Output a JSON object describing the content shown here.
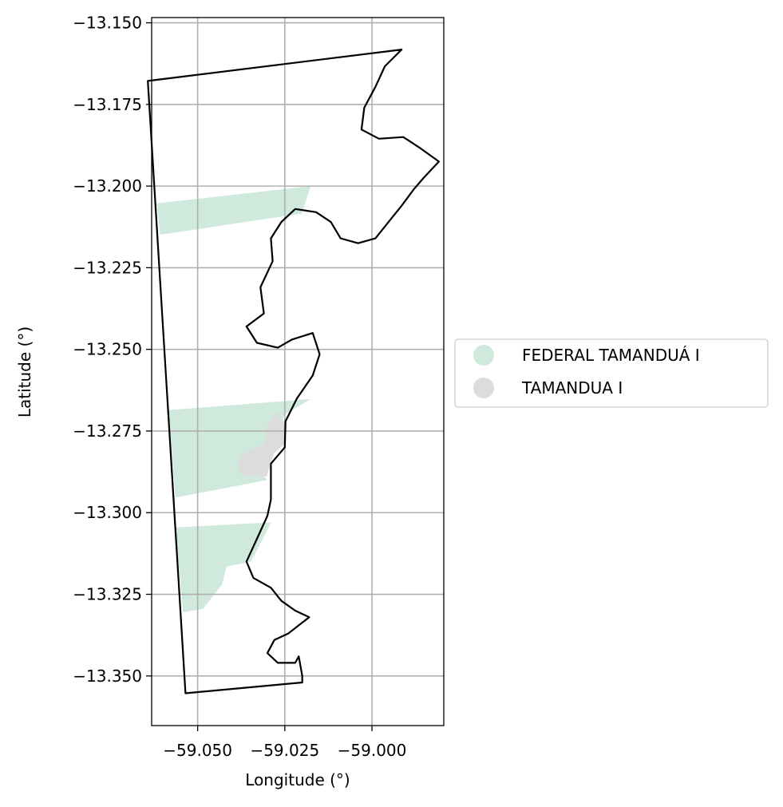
{
  "chart_data": {
    "type": "map",
    "xlabel": "Longitude (°)",
    "ylabel": "Latitude (°)",
    "xlim": [
      -59.0632,
      -58.9794
    ],
    "ylim": [
      -13.3652,
      -13.1484
    ],
    "x_ticks": [
      {
        "value": -59.05,
        "label": "−59.050"
      },
      {
        "value": -59.025,
        "label": "−59.025"
      },
      {
        "value": -59.0,
        "label": "−59.000"
      }
    ],
    "y_ticks": [
      {
        "value": -13.15,
        "label": "−13.150"
      },
      {
        "value": -13.175,
        "label": "−13.175"
      },
      {
        "value": -13.2,
        "label": "−13.200"
      },
      {
        "value": -13.225,
        "label": "−13.225"
      },
      {
        "value": -13.25,
        "label": "−13.250"
      },
      {
        "value": -13.275,
        "label": "−13.275"
      },
      {
        "value": -13.3,
        "label": "−13.300"
      },
      {
        "value": -13.325,
        "label": "−13.325"
      },
      {
        "value": -13.35,
        "label": "−13.350"
      }
    ],
    "grid": true,
    "legend_position": "right",
    "series": [
      {
        "name": "FEDERAL TAMANDUÁ I",
        "color": "#cfe9dc",
        "polygons": [
          [
            [
              -59.0617,
              -13.2053
            ],
            [
              -59.0176,
              -13.2
            ],
            [
              -59.0201,
              -13.2084
            ],
            [
              -59.0608,
              -13.2149
            ]
          ],
          [
            [
              -59.0583,
              -13.2686
            ],
            [
              -59.0176,
              -13.2652
            ],
            [
              -59.025,
              -13.27
            ],
            [
              -59.0284,
              -13.278
            ],
            [
              -59.0343,
              -13.286
            ],
            [
              -59.0299,
              -13.29
            ],
            [
              -59.0564,
              -13.2954
            ]
          ],
          [
            [
              -59.0564,
              -13.3045
            ],
            [
              -59.0289,
              -13.303
            ],
            [
              -59.0347,
              -13.315
            ],
            [
              -59.0417,
              -13.3165
            ],
            [
              -59.043,
              -13.322
            ],
            [
              -59.0485,
              -13.3295
            ],
            [
              -59.0542,
              -13.3305
            ]
          ]
        ]
      },
      {
        "name": "TAMANDUA I",
        "color": "#dcdcdc",
        "polygons": [
          [
            [
              -59.0272,
              -13.269
            ],
            [
              -59.0248,
              -13.273
            ],
            [
              -59.0252,
              -13.279
            ],
            [
              -59.0282,
              -13.282
            ],
            [
              -59.0302,
              -13.289
            ],
            [
              -59.0368,
              -13.2886
            ],
            [
              -59.0388,
              -13.286
            ],
            [
              -59.0378,
              -13.283
            ],
            [
              -59.0352,
              -13.281
            ],
            [
              -59.031,
              -13.279
            ],
            [
              -59.0298,
              -13.273
            ]
          ]
        ]
      }
    ],
    "outline": [
      [
        -59.0643,
        -13.1678
      ],
      [
        -58.9915,
        -13.1582
      ],
      [
        -58.9963,
        -13.1633
      ],
      [
        -58.999,
        -13.1696
      ],
      [
        -59.0022,
        -13.176
      ],
      [
        -59.003,
        -13.1827
      ],
      [
        -58.998,
        -13.1855
      ],
      [
        -58.991,
        -13.185
      ],
      [
        -58.986,
        -13.1885
      ],
      [
        -58.9808,
        -13.1925
      ],
      [
        -58.9852,
        -13.1975
      ],
      [
        -58.988,
        -13.201
      ],
      [
        -58.9915,
        -13.206
      ],
      [
        -58.996,
        -13.212
      ],
      [
        -58.999,
        -13.216
      ],
      [
        -59.004,
        -13.2175
      ],
      [
        -59.009,
        -13.216
      ],
      [
        -59.0118,
        -13.211
      ],
      [
        -59.016,
        -13.208
      ],
      [
        -59.022,
        -13.207
      ],
      [
        -59.026,
        -13.211
      ],
      [
        -59.029,
        -13.216
      ],
      [
        -59.0285,
        -13.223
      ],
      [
        -59.032,
        -13.231
      ],
      [
        -59.031,
        -13.239
      ],
      [
        -59.036,
        -13.243
      ],
      [
        -59.033,
        -13.248
      ],
      [
        -59.027,
        -13.2495
      ],
      [
        -59.023,
        -13.247
      ],
      [
        -59.017,
        -13.245
      ],
      [
        -59.015,
        -13.2515
      ],
      [
        -59.017,
        -13.258
      ],
      [
        -59.0215,
        -13.265
      ],
      [
        -59.0248,
        -13.272
      ],
      [
        -59.025,
        -13.28
      ],
      [
        -59.029,
        -13.285
      ],
      [
        -59.029,
        -13.296
      ],
      [
        -59.03,
        -13.301
      ],
      [
        -59.033,
        -13.308
      ],
      [
        -59.036,
        -13.315
      ],
      [
        -59.034,
        -13.32
      ],
      [
        -59.029,
        -13.323
      ],
      [
        -59.026,
        -13.327
      ],
      [
        -59.022,
        -13.33
      ],
      [
        -59.018,
        -13.332
      ],
      [
        -59.024,
        -13.337
      ],
      [
        -59.028,
        -13.339
      ],
      [
        -59.03,
        -13.343
      ],
      [
        -59.027,
        -13.346
      ],
      [
        -59.022,
        -13.346
      ],
      [
        -59.021,
        -13.344
      ],
      [
        -59.02,
        -13.35
      ],
      [
        -59.02,
        -13.352
      ],
      [
        -59.0535,
        -13.3553
      ]
    ]
  }
}
